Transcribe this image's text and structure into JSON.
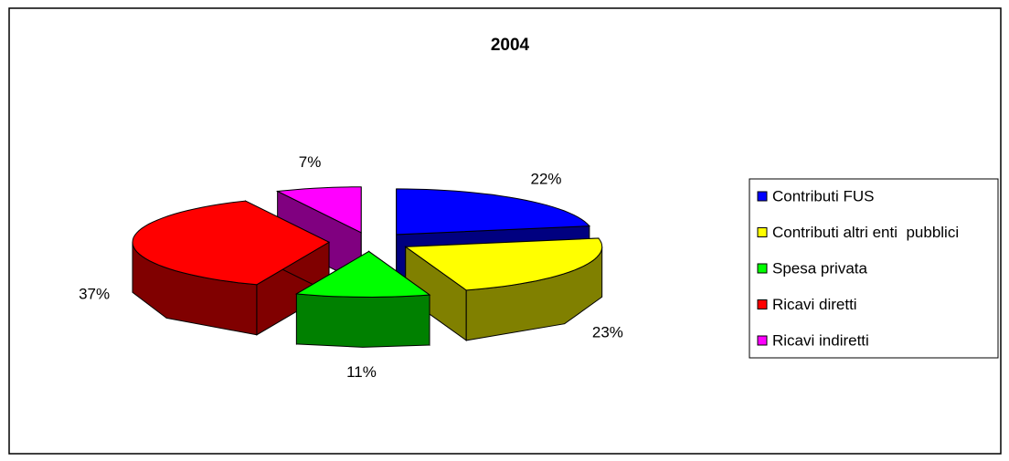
{
  "chart_data": {
    "type": "pie3d",
    "title": "2004",
    "categories": [
      "Contributi FUS",
      "Contributi altri enti  pubblici",
      "Spesa privata",
      "Ricavi diretti",
      "Ricavi indiretti"
    ],
    "values": [
      22,
      23,
      11,
      37,
      7
    ],
    "value_labels": [
      "22%",
      "23%",
      "11%",
      "37%",
      "7%"
    ],
    "colors": [
      "#0000ff",
      "#ffff00",
      "#00ff00",
      "#ff0000",
      "#ff00ff"
    ],
    "side_colors": [
      "#000080",
      "#808000",
      "#008000",
      "#800000",
      "#800080"
    ],
    "legend": "right"
  }
}
